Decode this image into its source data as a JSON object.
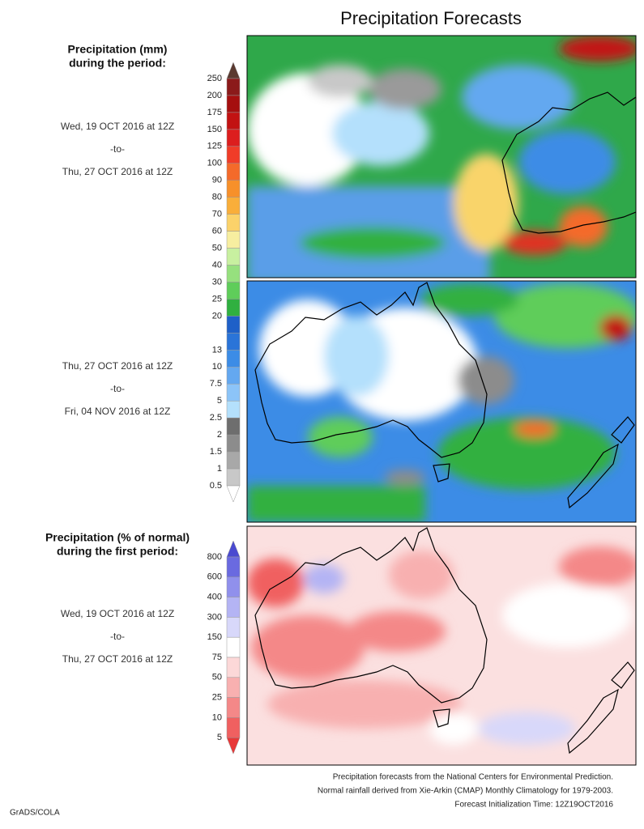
{
  "title": "Precipitation Forecasts",
  "legend_mm": {
    "heading": [
      "Precipitation (mm)",
      "during the period:"
    ],
    "levels": [
      "250",
      "200",
      "175",
      "150",
      "125",
      "100",
      "90",
      "80",
      "70",
      "60",
      "50",
      "40",
      "30",
      "25",
      "20",
      null,
      "13",
      "10",
      "7.5",
      "5",
      "2.5",
      "2",
      "1.5",
      "1",
      "0.5"
    ],
    "colors": [
      "#5a3a30",
      "#8b1a1a",
      "#a50f0f",
      "#c21212",
      "#dc1e1e",
      "#f03c28",
      "#f46a2a",
      "#f7902a",
      "#f9ae3a",
      "#fbd26a",
      "#f7eea0",
      "#c8f0a0",
      "#96e07e",
      "#5fcd5a",
      "#30b040",
      "#1e60c8",
      "#2a74d8",
      "#3c8ce6",
      "#64a8f0",
      "#8cc4f8",
      "#b4e0fc",
      "#6e6e6e",
      "#8c8c8c",
      "#a8a8a8",
      "#c8c8c8",
      "#ffffff"
    ]
  },
  "period_1": [
    "Wed, 19 OCT 2016 at 12Z",
    "-to-",
    "Thu, 27 OCT 2016 at 12Z"
  ],
  "period_2": [
    "Thu, 27 OCT 2016 at 12Z",
    "-to-",
    "Fri, 04 NOV 2016 at 12Z"
  ],
  "legend_pct": {
    "heading": [
      "Precipitation (% of normal)",
      "during the first period:"
    ],
    "levels": [
      "800",
      "600",
      "400",
      "300",
      "150",
      "75",
      "50",
      "25",
      "10",
      "5"
    ],
    "colors": [
      "#4a4ad0",
      "#6a6ae0",
      "#9090ec",
      "#b4b4f4",
      "#d8d8fa",
      "#ffffff",
      "#fcd8d8",
      "#f8b0b0",
      "#f48888",
      "#f06060",
      "#e83838"
    ]
  },
  "period_3": [
    "Wed, 19 OCT 2016 at 12Z",
    "-to-",
    "Thu, 27 OCT 2016 at 12Z"
  ],
  "footer": [
    "Precipitation forecasts from the National Centers for Environmental Prediction.",
    "Normal rainfall derived from Xie-Arkin (CMAP) Monthly Climatology for 1979-2003.",
    "Forecast Initialization Time: 12Z19OCT2016"
  ],
  "credit": "GrADS/COLA"
}
